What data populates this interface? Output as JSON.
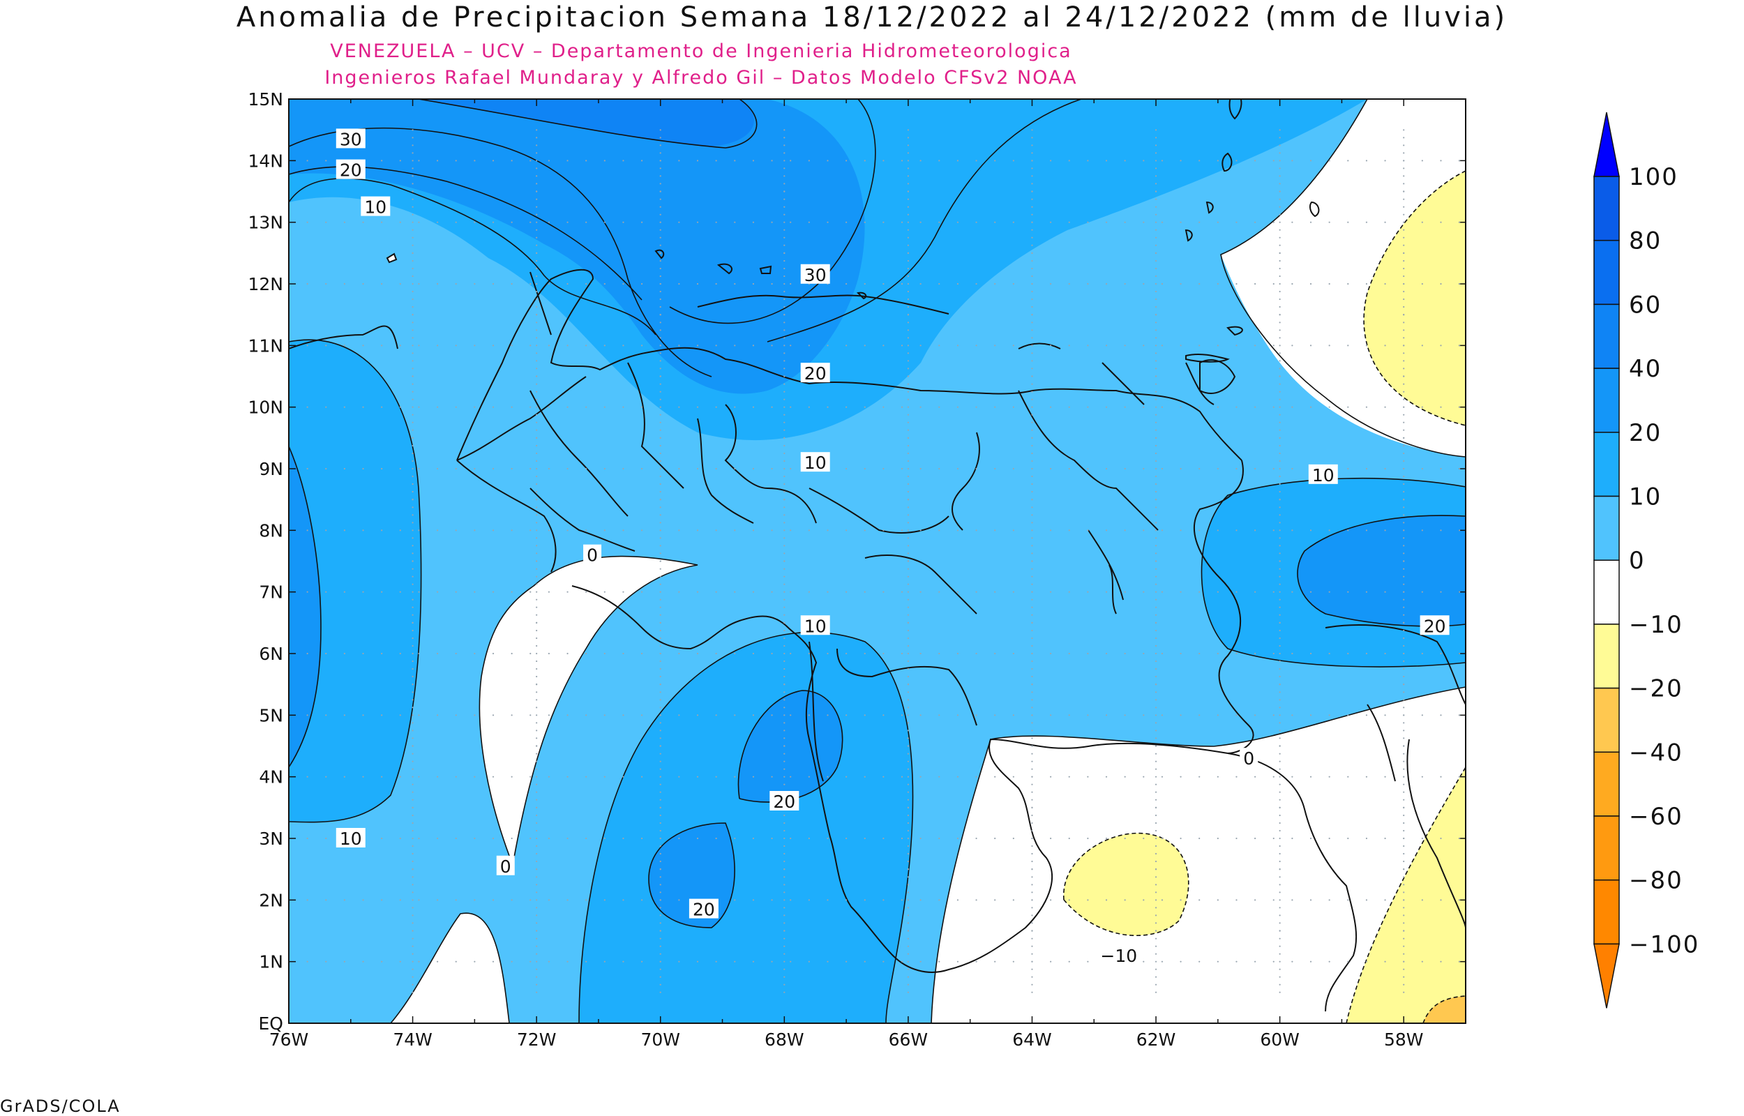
{
  "title": "Anomalia de Precipitacion Semana 18/12/2022 al 24/12/2022 (mm de lluvia)",
  "subtitle_line1": "VENEZUELA – UCV – Departamento de Ingenieria Hidrometeorologica",
  "subtitle_line2": "Ingenieros Rafael Mundaray y Alfredo Gil – Datos Modelo CFSv2 NOAA",
  "footer": "GrADS/COLA",
  "axes": {
    "lon_labels": [
      "76W",
      "74W",
      "72W",
      "70W",
      "68W",
      "66W",
      "64W",
      "62W",
      "60W",
      "58W"
    ],
    "lat_labels": [
      "EQ",
      "1N",
      "2N",
      "3N",
      "4N",
      "5N",
      "6N",
      "7N",
      "8N",
      "9N",
      "10N",
      "11N",
      "12N",
      "13N",
      "14N",
      "15N"
    ]
  },
  "contour_labels": [
    {
      "text": "30",
      "lon": -75.0,
      "lat": 14.35
    },
    {
      "text": "20",
      "lon": -75.0,
      "lat": 13.85
    },
    {
      "text": "10",
      "lon": -74.6,
      "lat": 13.25
    },
    {
      "text": "30",
      "lon": -67.5,
      "lat": 12.15
    },
    {
      "text": "20",
      "lon": -67.5,
      "lat": 10.55
    },
    {
      "text": "10",
      "lon": -67.5,
      "lat": 9.1
    },
    {
      "text": "0",
      "lon": -71.1,
      "lat": 7.6
    },
    {
      "text": "10",
      "lon": -59.3,
      "lat": 8.9
    },
    {
      "text": "20",
      "lon": -57.5,
      "lat": 6.45
    },
    {
      "text": "10",
      "lon": -67.5,
      "lat": 6.45
    },
    {
      "text": "20",
      "lon": -68.0,
      "lat": 3.6
    },
    {
      "text": "20",
      "lon": -69.3,
      "lat": 1.85
    },
    {
      "text": "0",
      "lon": -60.5,
      "lat": 4.3
    },
    {
      "text": "10",
      "lon": -75.0,
      "lat": 3.0
    },
    {
      "text": "0",
      "lon": -72.5,
      "lat": 2.55
    },
    {
      "text": "−10",
      "lon": -62.6,
      "lat": 1.1
    }
  ],
  "colorbar": {
    "labels": [
      "100",
      "80",
      "60",
      "40",
      "20",
      "10",
      "0",
      "−10",
      "−20",
      "−40",
      "−60",
      "−80",
      "−100"
    ],
    "colors": [
      "#0a5ce8",
      "#0a6ff0",
      "#0f84f5",
      "#1496f8",
      "#1eaefc",
      "#50c3fd",
      "#ffffff",
      "#fffb96",
      "#ffc850",
      "#ffaa20",
      "#ff9a10",
      "#ff8800"
    ],
    "top_arrow_color": "#0000ff",
    "bottom_arrow_color": "#ff8000"
  },
  "colors": {
    "c0_10": "#50c3fd",
    "c10_20": "#1eaefc",
    "c20_40": "#1496f8",
    "c40_60": "#0f84f5",
    "neg0_10": "#ffffff",
    "neg10_20": "#fffb96",
    "neg20_40": "#ffc850"
  }
}
